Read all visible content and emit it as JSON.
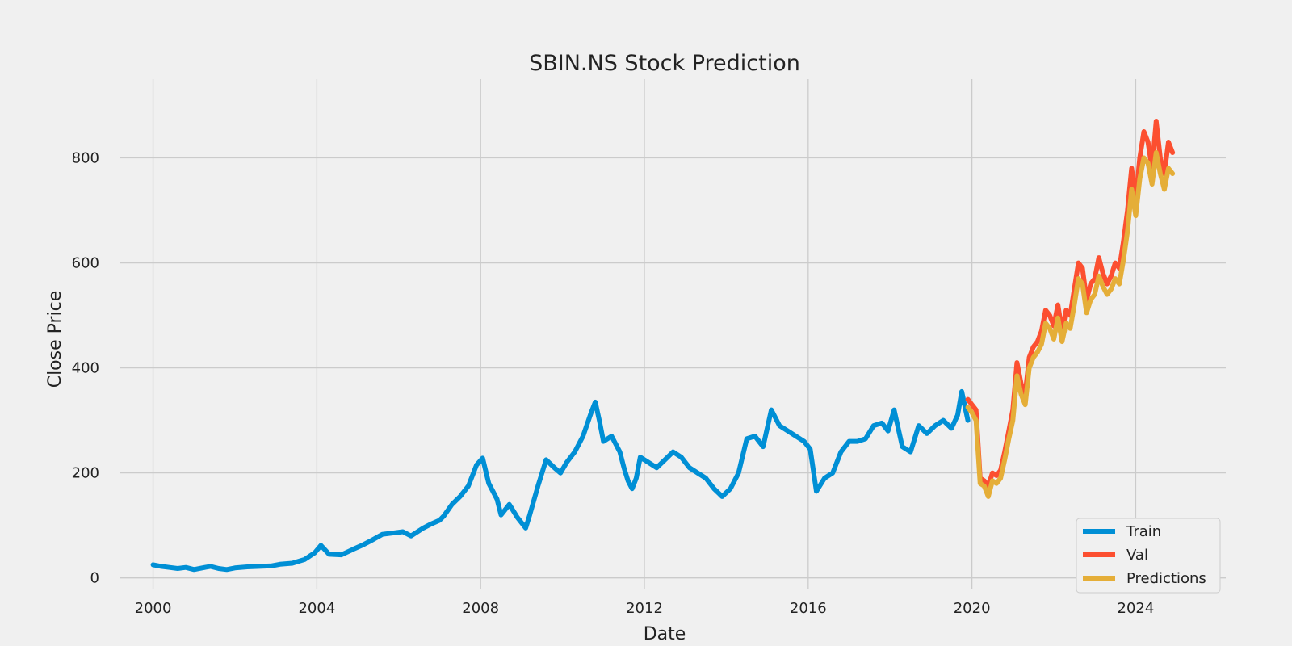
{
  "chart_data": {
    "type": "line",
    "title": "SBIN.NS Stock Prediction",
    "xlabel": "Date",
    "ylabel": "Close Price",
    "x_ticks": [
      "2000",
      "2004",
      "2008",
      "2012",
      "2016",
      "2020",
      "2024"
    ],
    "y_ticks": [
      "0",
      "200",
      "400",
      "600",
      "800"
    ],
    "xlim": [
      1999.2,
      2026.2
    ],
    "ylim": [
      -22,
      950
    ],
    "grid": true,
    "legend_position": "lower-right",
    "colors": {
      "Train": "#008fd5",
      "Val": "#fc4f30",
      "Predictions": "#e5ae38"
    },
    "series": [
      {
        "name": "Train",
        "x": [
          2000.0,
          2000.2,
          2000.4,
          2000.6,
          2000.8,
          2001.0,
          2001.2,
          2001.4,
          2001.6,
          2001.8,
          2002.0,
          2002.3,
          2002.6,
          2002.9,
          2003.1,
          2003.4,
          2003.7,
          2003.95,
          2004.1,
          2004.3,
          2004.6,
          2004.9,
          2005.1,
          2005.3,
          2005.6,
          2005.9,
          2006.1,
          2006.3,
          2006.6,
          2006.8,
          2007.0,
          2007.1,
          2007.3,
          2007.5,
          2007.7,
          2007.9,
          2008.05,
          2008.2,
          2008.4,
          2008.5,
          2008.7,
          2008.9,
          2009.1,
          2009.2,
          2009.4,
          2009.6,
          2009.8,
          2009.95,
          2010.1,
          2010.3,
          2010.5,
          2010.7,
          2010.8,
          2010.9,
          2011.0,
          2011.2,
          2011.3,
          2011.4,
          2011.5,
          2011.6,
          2011.7,
          2011.8,
          2011.9,
          2012.1,
          2012.3,
          2012.5,
          2012.7,
          2012.9,
          2013.1,
          2013.3,
          2013.5,
          2013.7,
          2013.9,
          2014.1,
          2014.3,
          2014.5,
          2014.7,
          2014.9,
          2015.1,
          2015.3,
          2015.5,
          2015.7,
          2015.9,
          2016.05,
          2016.2,
          2016.4,
          2016.6,
          2016.8,
          2017.0,
          2017.2,
          2017.4,
          2017.6,
          2017.8,
          2017.95,
          2018.1,
          2018.3,
          2018.5,
          2018.7,
          2018.9,
          2019.1,
          2019.3,
          2019.5,
          2019.65,
          2019.75,
          2019.9
        ],
        "y": [
          25,
          22,
          20,
          18,
          20,
          16,
          19,
          22,
          18,
          16,
          19,
          21,
          22,
          23,
          26,
          28,
          35,
          48,
          62,
          45,
          44,
          55,
          62,
          70,
          83,
          86,
          88,
          80,
          95,
          103,
          110,
          118,
          140,
          155,
          175,
          215,
          228,
          180,
          150,
          120,
          140,
          115,
          95,
          120,
          175,
          225,
          210,
          200,
          220,
          240,
          270,
          315,
          335,
          300,
          260,
          270,
          255,
          240,
          210,
          185,
          170,
          190,
          230,
          220,
          210,
          225,
          240,
          230,
          210,
          200,
          190,
          170,
          155,
          170,
          200,
          265,
          270,
          250,
          320,
          290,
          280,
          270,
          260,
          245,
          165,
          190,
          200,
          240,
          260,
          260,
          265,
          290,
          295,
          280,
          320,
          250,
          240,
          290,
          275,
          290,
          300,
          285,
          310,
          355,
          300
        ]
      },
      {
        "name": "Val",
        "x": [
          2019.9,
          2020.0,
          2020.1,
          2020.2,
          2020.3,
          2020.4,
          2020.5,
          2020.6,
          2020.7,
          2020.8,
          2020.9,
          2021.0,
          2021.1,
          2021.2,
          2021.3,
          2021.4,
          2021.5,
          2021.6,
          2021.7,
          2021.8,
          2021.9,
          2022.0,
          2022.1,
          2022.2,
          2022.3,
          2022.4,
          2022.5,
          2022.6,
          2022.7,
          2022.8,
          2022.9,
          2023.0,
          2023.1,
          2023.2,
          2023.3,
          2023.4,
          2023.5,
          2023.6,
          2023.7,
          2023.8,
          2023.9,
          2024.0,
          2024.1,
          2024.2,
          2024.3,
          2024.4,
          2024.5,
          2024.6,
          2024.7,
          2024.8,
          2024.9
        ],
        "y": [
          340,
          330,
          320,
          190,
          185,
          175,
          200,
          195,
          205,
          240,
          280,
          320,
          410,
          370,
          350,
          420,
          440,
          450,
          470,
          510,
          500,
          480,
          520,
          470,
          510,
          500,
          550,
          600,
          590,
          530,
          560,
          570,
          610,
          580,
          560,
          575,
          600,
          590,
          640,
          700,
          780,
          720,
          800,
          850,
          830,
          780,
          870,
          800,
          770,
          830,
          810
        ]
      },
      {
        "name": "Predictions",
        "x": [
          2019.9,
          2020.0,
          2020.1,
          2020.2,
          2020.3,
          2020.4,
          2020.5,
          2020.6,
          2020.7,
          2020.8,
          2020.9,
          2021.0,
          2021.1,
          2021.2,
          2021.3,
          2021.4,
          2021.5,
          2021.6,
          2021.7,
          2021.8,
          2021.9,
          2022.0,
          2022.1,
          2022.2,
          2022.3,
          2022.4,
          2022.5,
          2022.6,
          2022.7,
          2022.8,
          2022.9,
          2023.0,
          2023.1,
          2023.2,
          2023.3,
          2023.4,
          2023.5,
          2023.6,
          2023.7,
          2023.8,
          2023.9,
          2024.0,
          2024.1,
          2024.2,
          2024.3,
          2024.4,
          2024.5,
          2024.6,
          2024.7,
          2024.8,
          2024.9
        ],
        "y": [
          325,
          315,
          300,
          180,
          175,
          155,
          185,
          180,
          190,
          225,
          265,
          300,
          385,
          350,
          330,
          400,
          420,
          430,
          445,
          485,
          475,
          455,
          495,
          450,
          485,
          475,
          520,
          570,
          560,
          505,
          530,
          540,
          575,
          555,
          540,
          550,
          570,
          560,
          605,
          660,
          740,
          690,
          760,
          800,
          790,
          750,
          810,
          770,
          740,
          780,
          770
        ]
      }
    ]
  }
}
